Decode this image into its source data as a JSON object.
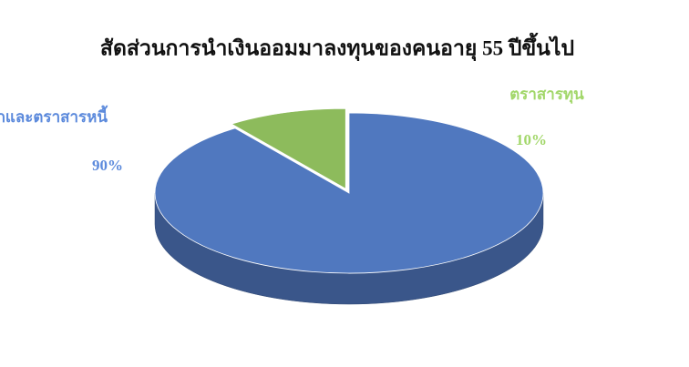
{
  "chart_data": {
    "type": "pie",
    "title": "สัดส่วนการนำเงินออมมาลงทุนของคนอายุ 55 ปีขึ้นไป",
    "categories": [
      "เงินฝากและตราสารหนี้",
      "ตราสารทุน"
    ],
    "values": [
      90,
      10
    ],
    "value_labels": [
      "90%",
      "10%"
    ],
    "colors": [
      "#5078bf",
      "#8dbb5c"
    ]
  }
}
